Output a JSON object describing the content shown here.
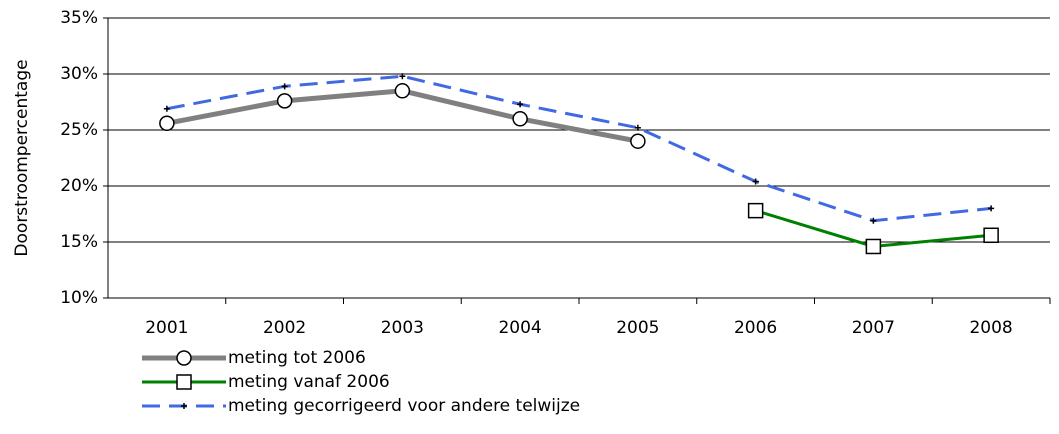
{
  "chart_data": {
    "type": "line",
    "ylabel": "Doorstroompercentage",
    "categories": [
      "2001",
      "2002",
      "2003",
      "2004",
      "2005",
      "2006",
      "2007",
      "2008"
    ],
    "series": [
      {
        "name": "meting tot 2006",
        "color": "#808080",
        "marker": "circle",
        "dash": false,
        "width": 5,
        "values": [
          25.6,
          27.6,
          28.5,
          26.0,
          24.0,
          null,
          null,
          null
        ]
      },
      {
        "name": "meting vanaf 2006",
        "color": "#008000",
        "marker": "square",
        "dash": false,
        "width": 3,
        "values": [
          null,
          null,
          null,
          null,
          null,
          17.8,
          14.6,
          15.6
        ]
      },
      {
        "name": "meting gecorrigeerd voor andere telwijze",
        "color": "#4169e1",
        "marker": "plus",
        "dash": true,
        "width": 3,
        "values": [
          26.9,
          28.9,
          29.8,
          27.3,
          25.2,
          20.4,
          16.9,
          18.0
        ]
      }
    ],
    "ylim": [
      10,
      35
    ],
    "yticks": [
      {
        "value": 10,
        "label": "10%"
      },
      {
        "value": 15,
        "label": "15%"
      },
      {
        "value": 20,
        "label": "20%"
      },
      {
        "value": 25,
        "label": "25%"
      },
      {
        "value": 30,
        "label": "30%"
      },
      {
        "value": 35,
        "label": "35%"
      }
    ],
    "grid": true
  }
}
